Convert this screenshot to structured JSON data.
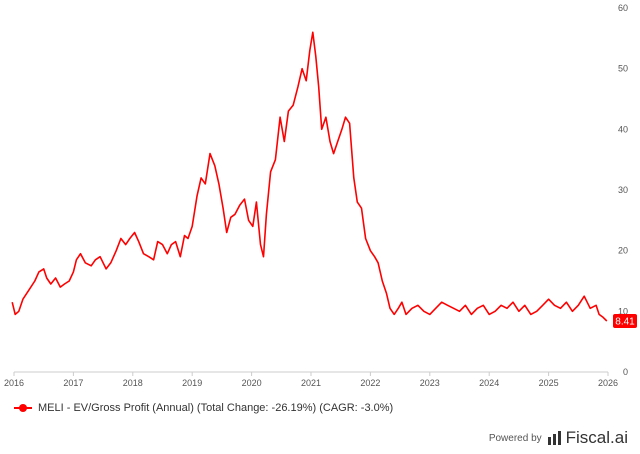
{
  "chart_data": {
    "type": "line",
    "x_ticks": [
      "2016",
      "2017",
      "2018",
      "2019",
      "2020",
      "2021",
      "2022",
      "2023",
      "2024",
      "2025",
      "2026"
    ],
    "y_ticks": [
      "0",
      "10",
      "20",
      "30",
      "40",
      "50",
      "60"
    ],
    "ylim": [
      0,
      60
    ],
    "xlim": [
      2016.0,
      2026.0
    ],
    "grid": false,
    "legend_position": "bottom-left",
    "series": [
      {
        "name": "MELI - EV/Gross Profit (Annual) (Total Change: -26.19%) (CAGR: -3.0%)",
        "color": "#ff0000",
        "x": [
          2015.97,
          2016.02,
          2016.08,
          2016.15,
          2016.25,
          2016.35,
          2016.42,
          2016.5,
          2016.55,
          2016.62,
          2016.7,
          2016.78,
          2016.85,
          2016.93,
          2017.0,
          2017.05,
          2017.12,
          2017.2,
          2017.3,
          2017.37,
          2017.45,
          2017.55,
          2017.63,
          2017.72,
          2017.8,
          2017.88,
          2017.95,
          2018.03,
          2018.1,
          2018.18,
          2018.27,
          2018.35,
          2018.42,
          2018.5,
          2018.58,
          2018.65,
          2018.72,
          2018.8,
          2018.87,
          2018.93,
          2019.0,
          2019.08,
          2019.15,
          2019.22,
          2019.3,
          2019.38,
          2019.45,
          2019.52,
          2019.58,
          2019.65,
          2019.72,
          2019.8,
          2019.88,
          2019.95,
          2020.02,
          2020.08,
          2020.15,
          2020.2,
          2020.25,
          2020.32,
          2020.4,
          2020.48,
          2020.55,
          2020.62,
          2020.7,
          2020.78,
          2020.85,
          2020.92,
          2020.98,
          2021.03,
          2021.08,
          2021.13,
          2021.18,
          2021.25,
          2021.32,
          2021.38,
          2021.45,
          2021.52,
          2021.58,
          2021.65,
          2021.72,
          2021.78,
          2021.85,
          2021.92,
          2022.0,
          2022.07,
          2022.13,
          2022.2,
          2022.27,
          2022.33,
          2022.4,
          2022.47,
          2022.53,
          2022.6,
          2022.7,
          2022.8,
          2022.9,
          2023.0,
          2023.1,
          2023.2,
          2023.3,
          2023.4,
          2023.5,
          2023.6,
          2023.7,
          2023.8,
          2023.9,
          2024.0,
          2024.1,
          2024.2,
          2024.3,
          2024.4,
          2024.5,
          2024.6,
          2024.7,
          2024.8,
          2024.9,
          2025.0,
          2025.1,
          2025.2,
          2025.3,
          2025.4,
          2025.5,
          2025.6,
          2025.7,
          2025.8,
          2025.85,
          2025.92,
          2025.98
        ],
        "values": [
          11.5,
          9.5,
          10.0,
          12.0,
          13.5,
          15.0,
          16.5,
          17.0,
          15.5,
          14.5,
          15.5,
          14.0,
          14.5,
          15.0,
          16.5,
          18.5,
          19.5,
          18.0,
          17.5,
          18.5,
          19.0,
          17.0,
          18.0,
          20.0,
          22.0,
          21.0,
          22.0,
          23.0,
          21.5,
          19.5,
          19.0,
          18.5,
          21.5,
          21.0,
          19.5,
          21.0,
          21.5,
          19.0,
          22.5,
          22.0,
          24.0,
          29.0,
          32.0,
          31.0,
          36.0,
          34.0,
          31.0,
          27.0,
          23.0,
          25.5,
          26.0,
          27.5,
          28.5,
          25.0,
          24.0,
          28.0,
          21.0,
          19.0,
          26.0,
          33.0,
          35.0,
          42.0,
          38.0,
          43.0,
          44.0,
          47.0,
          50.0,
          48.0,
          53.0,
          56.0,
          52.0,
          47.0,
          40.0,
          42.0,
          38.0,
          36.0,
          38.0,
          40.0,
          42.0,
          41.0,
          32.0,
          28.0,
          27.0,
          22.0,
          20.0,
          19.0,
          18.0,
          15.0,
          13.0,
          10.5,
          9.5,
          10.5,
          11.5,
          9.5,
          10.5,
          11.0,
          10.0,
          9.5,
          10.5,
          11.5,
          11.0,
          10.5,
          10.0,
          11.0,
          9.5,
          10.5,
          11.0,
          9.5,
          10.0,
          11.0,
          10.5,
          11.5,
          10.0,
          11.0,
          9.5,
          10.0,
          11.0,
          12.0,
          11.0,
          10.5,
          11.5,
          10.0,
          11.0,
          12.5,
          10.5,
          11.0,
          9.5,
          9.0,
          8.41
        ]
      }
    ],
    "last_value_label": "8.41"
  },
  "legend": {
    "label": "MELI - EV/Gross Profit (Annual) (Total Change: -26.19%) (CAGR: -3.0%)"
  },
  "footer": {
    "powered_by": "Powered by",
    "brand": "Fiscal.ai"
  }
}
